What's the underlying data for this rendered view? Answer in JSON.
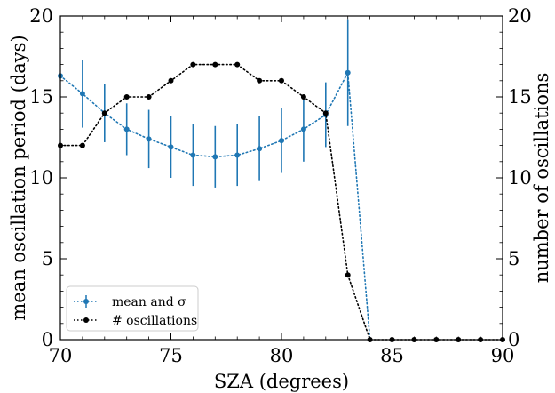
{
  "chart_data": {
    "type": "line",
    "xlabel": "SZA (degrees)",
    "ylabel_left": "mean oscillation period (days)",
    "ylabel_right": "number of oscillations",
    "xlim": [
      70,
      90
    ],
    "ylim_left": [
      0,
      20
    ],
    "ylim_right": [
      0,
      20
    ],
    "x_ticks": [
      "70",
      "75",
      "80",
      "85",
      "90"
    ],
    "y_ticks_left": [
      "0",
      "5",
      "10",
      "15",
      "20"
    ],
    "y_ticks_right": [
      "0",
      "5",
      "10",
      "15",
      "20"
    ],
    "grid": false,
    "legend_position": "lower-left",
    "series": [
      {
        "name": "mean and σ",
        "axis": "left",
        "color": "#1f77b4",
        "line_style": "dotted",
        "marker": "circle",
        "x": [
          70,
          71,
          72,
          73,
          74,
          75,
          76,
          77,
          78,
          79,
          80,
          81,
          82,
          83,
          84
        ],
        "y": [
          16.3,
          15.2,
          14.0,
          13.0,
          12.4,
          11.9,
          11.4,
          11.3,
          11.4,
          11.8,
          12.3,
          13.0,
          13.9,
          16.5,
          0
        ],
        "err": [
          null,
          2.1,
          1.8,
          1.6,
          1.8,
          1.9,
          1.9,
          1.9,
          1.9,
          2.0,
          2.0,
          2.0,
          2.0,
          3.3,
          null
        ]
      },
      {
        "name": "# oscillations",
        "axis": "right",
        "color": "#000000",
        "line_style": "dotted",
        "marker": "circle",
        "x": [
          70,
          71,
          72,
          73,
          74,
          75,
          76,
          77,
          78,
          79,
          80,
          81,
          82,
          83,
          84,
          85,
          86,
          87,
          88,
          89,
          90
        ],
        "y": [
          12,
          12,
          14,
          15,
          15,
          16,
          17,
          17,
          17,
          16,
          16,
          15,
          14,
          4,
          0,
          0,
          0,
          0,
          0,
          0,
          0
        ]
      }
    ]
  }
}
